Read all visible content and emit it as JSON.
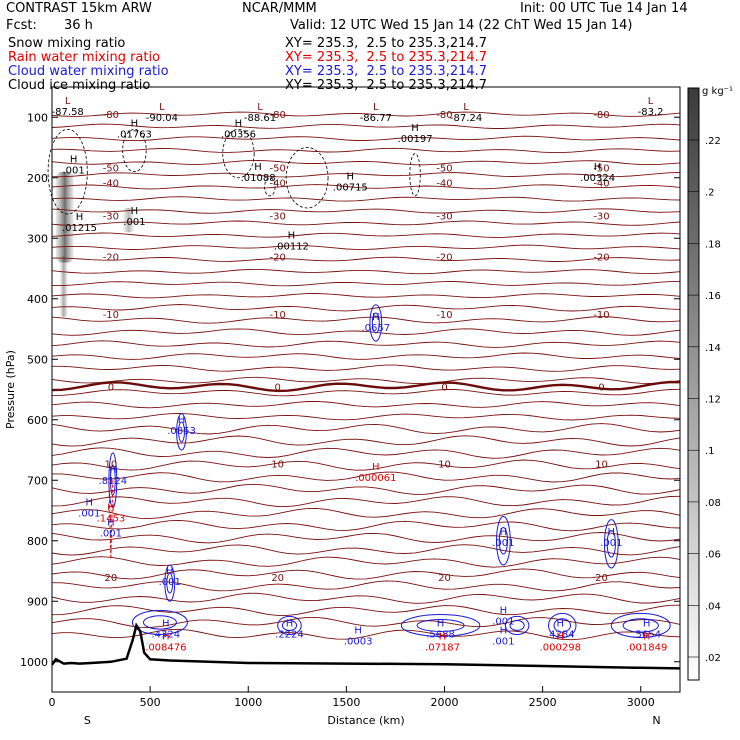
{
  "header": {
    "model": "CONTRAST 15km ARW",
    "org": "NCAR/MMM",
    "init": "Init: 00 UTC Tue 14 Jan 14",
    "fcst_label": "Fcst:",
    "fcst_value": "36 h",
    "valid": "Valid: 12 UTC Wed 15 Jan 14 (22 ChT Wed 15 Jan 14)"
  },
  "fields": [
    {
      "name": "Snow mixing ratio",
      "xy": "XY= 235.3,  2.5 to 235.3,214.7",
      "color": "#000000"
    },
    {
      "name": "Rain water mixing ratio",
      "xy": "XY= 235.3,  2.5 to 235.3,214.7",
      "color": "#e00000"
    },
    {
      "name": "Cloud water mixing ratio",
      "xy": "XY= 235.3,  2.5 to 235.3,214.7",
      "color": "#1a1ad8"
    },
    {
      "name": "Cloud ice mixing ratio",
      "xy": "XY= 235.3,  2.5 to 235.3,214.7",
      "color": "#000000"
    }
  ],
  "colorbar": {
    "unit": "g kg⁻¹",
    "ticks": [
      ".22",
      ".2",
      ".18",
      ".16",
      ".14",
      ".12",
      ".1",
      ".08",
      ".06",
      ".04",
      ".02"
    ]
  },
  "chart_data": {
    "type": "contour cross-section",
    "xlabel": "Distance (km)",
    "ylabel": "Pressure (hPa)",
    "xlim": [
      0,
      3200
    ],
    "ylim": [
      1050,
      50
    ],
    "x_ticks": [
      0,
      500,
      1000,
      1500,
      2000,
      2500,
      3000
    ],
    "y_ticks": [
      100,
      200,
      300,
      400,
      500,
      600,
      700,
      800,
      900,
      1000
    ],
    "end_labels": {
      "left": "S",
      "right": "N"
    },
    "temperature_contours": [
      {
        "label": "-80",
        "p": 95
      },
      {
        "label": "-50",
        "p": 183
      },
      {
        "label": "-40",
        "p": 208
      },
      {
        "label": "-30",
        "p": 262
      },
      {
        "label": "-20",
        "p": 330
      },
      {
        "label": "-10",
        "p": 425
      },
      {
        "label": "0",
        "p": 545
      },
      {
        "label": "10",
        "p": 672
      },
      {
        "label": "20",
        "p": 860
      }
    ],
    "cloud_ice_labels": [
      {
        "text": ".01763",
        "x": 420,
        "p": 130
      },
      {
        "text": ".00356",
        "x": 950,
        "p": 130
      },
      {
        "text": ".00197",
        "x": 1850,
        "p": 138
      },
      {
        "text": ".01088",
        "x": 1050,
        "p": 202
      },
      {
        "text": ".00715",
        "x": 1520,
        "p": 218
      },
      {
        "text": ".00324",
        "x": 2780,
        "p": 202
      },
      {
        "text": ".001",
        "x": 110,
        "p": 190
      },
      {
        "text": ".01215",
        "x": 140,
        "p": 285
      },
      {
        "text": ".001",
        "x": 420,
        "p": 275
      },
      {
        "text": ".00112",
        "x": 1220,
        "p": 315
      }
    ],
    "cloud_water_labels": [
      {
        "text": ".0657",
        "x": 1650,
        "p": 450
      },
      {
        "text": ".0853",
        "x": 660,
        "p": 620
      },
      {
        "text": ".8124",
        "x": 310,
        "p": 703
      },
      {
        "text": ".001",
        "x": 190,
        "p": 757
      },
      {
        "text": ".001",
        "x": 300,
        "p": 790
      },
      {
        "text": ".001",
        "x": 600,
        "p": 870
      },
      {
        "text": ".001",
        "x": 2300,
        "p": 805
      },
      {
        "text": ".001",
        "x": 2850,
        "p": 805
      },
      {
        "text": ".4324",
        "x": 580,
        "p": 957
      },
      {
        "text": ".2224",
        "x": 1210,
        "p": 957
      },
      {
        "text": ".0003",
        "x": 1560,
        "p": 968
      },
      {
        "text": ".5688",
        "x": 1980,
        "p": 957
      },
      {
        "text": ".001",
        "x": 2300,
        "p": 935
      },
      {
        "text": ".001",
        "x": 2300,
        "p": 968
      },
      {
        "text": ".4284",
        "x": 2590,
        "p": 957
      },
      {
        "text": ".5654",
        "x": 3030,
        "p": 957
      }
    ],
    "rain_water_labels": [
      {
        "text": ".000061",
        "x": 1650,
        "p": 698
      },
      {
        "text": ".1453",
        "x": 300,
        "p": 765
      },
      {
        "text": ".008476",
        "x": 580,
        "p": 978
      },
      {
        "text": ".07187",
        "x": 1990,
        "p": 978
      },
      {
        "text": ".000298",
        "x": 2590,
        "p": 978
      },
      {
        "text": ".001849",
        "x": 3030,
        "p": 978
      }
    ],
    "low_labels": [
      {
        "text": "-87.58",
        "x": 80,
        "p": 93
      },
      {
        "text": "-90.04",
        "x": 560,
        "p": 103
      },
      {
        "text": "-88.61",
        "x": 1060,
        "p": 103
      },
      {
        "text": "-86.77",
        "x": 1650,
        "p": 103
      },
      {
        "text": "-87.24",
        "x": 2110,
        "p": 103
      },
      {
        "text": "-83.2",
        "x": 3050,
        "p": 93
      }
    ]
  }
}
